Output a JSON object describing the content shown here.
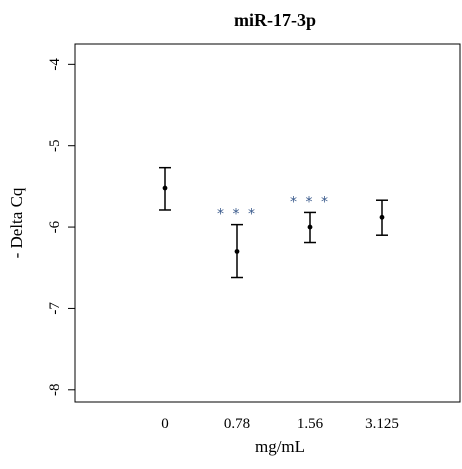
{
  "chart_data": {
    "type": "scatter",
    "title": "miR-17-3p",
    "xlabel": "mg/mL",
    "ylabel": "- Delta Cq",
    "categories": [
      "0",
      "0.78",
      "1.56",
      "3.125"
    ],
    "values": [
      -5.52,
      -6.3,
      -6.0,
      -5.88
    ],
    "error_low": [
      -5.79,
      -6.62,
      -6.19,
      -6.1
    ],
    "error_high": [
      -5.27,
      -5.97,
      -5.82,
      -5.67
    ],
    "significance": [
      "",
      "* * *",
      "* * *",
      ""
    ],
    "yticks": [
      -4,
      -5,
      -6,
      -7,
      -8
    ],
    "ytick_labels": [
      "-4",
      "-5",
      "-6",
      "-7",
      "-8"
    ],
    "ylim": [
      -8.15,
      -3.75
    ],
    "grid": false,
    "colors": {
      "points": "#000000",
      "significance": "#3a5a8c"
    }
  }
}
